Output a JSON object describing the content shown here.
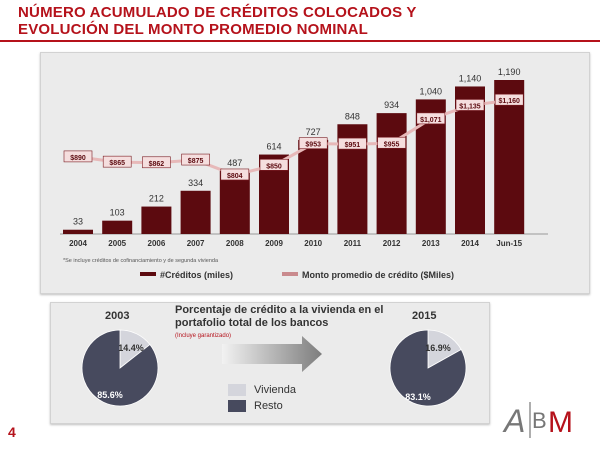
{
  "title": "NÚMERO ACUMULADO DE CRÉDITOS COLOCADOS Y EVOLUCIÓN DEL MONTO PROMEDIO NOMINAL",
  "page_number": "4",
  "chart_data": [
    {
      "type": "bar",
      "categories": [
        "2004",
        "2005",
        "2006",
        "2007",
        "2008",
        "2009",
        "2010",
        "2011",
        "2012",
        "2013",
        "2014",
        "Jun-15"
      ],
      "series": [
        {
          "name": "#Créditos (miles)",
          "type": "bar",
          "values": [
            33,
            103,
            212,
            334,
            487,
            614,
            727,
            848,
            934,
            1040,
            1140,
            1190
          ],
          "labels": [
            "33",
            "103",
            "212",
            "334",
            "487",
            "614",
            "727",
            "848",
            "934",
            "1,040",
            "1,140",
            "1,190"
          ],
          "color": "#5c0a0f"
        },
        {
          "name": "Monto promedio de crédito ($Miles)",
          "type": "line",
          "values": [
            890,
            865,
            862,
            875,
            804,
            850,
            953,
            951,
            955,
            1071,
            1135,
            1160
          ],
          "labels": [
            "$890",
            "$865",
            "$862",
            "$875",
            "$804",
            "$850",
            "$953",
            "$951",
            "$955",
            "$1,071",
            "$1,135",
            "$1,160"
          ],
          "color": "#e7b9b9"
        }
      ],
      "footnote": "*Se incluye créditos de cofinanciamiento y de segunda vivienda",
      "legend_position": "bottom",
      "grid": false
    },
    {
      "type": "pie",
      "year": "2003",
      "slices": [
        {
          "name": "Vivienda",
          "value": 14.4,
          "label": "14.4%",
          "color": "#d4d5dc"
        },
        {
          "name": "Resto",
          "value": 85.6,
          "label": "85.6%",
          "color": "#474a5e"
        }
      ]
    },
    {
      "type": "pie",
      "year": "2015",
      "slices": [
        {
          "name": "Vivienda",
          "value": 16.9,
          "label": "16.9%",
          "color": "#d4d5dc"
        },
        {
          "name": "Resto",
          "value": 83.1,
          "label": "83.1%",
          "color": "#474a5e"
        }
      ]
    }
  ],
  "pies": {
    "title": "Porcentaje de crédito a la vivienda en el portafolio total de los bancos",
    "note": "(Incluye garantizado)",
    "legend": [
      {
        "label": "Vivienda",
        "color": "#d4d5dc"
      },
      {
        "label": "Resto",
        "color": "#474a5e"
      }
    ]
  },
  "logo_text": "ABM"
}
